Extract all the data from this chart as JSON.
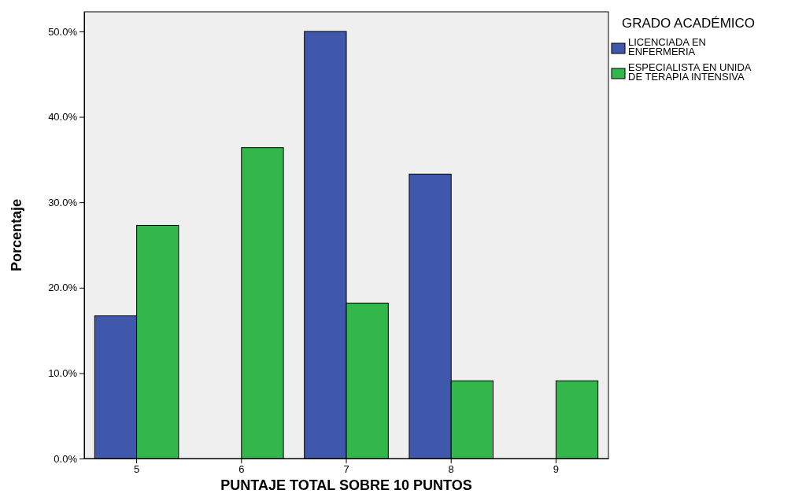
{
  "chart_data": {
    "type": "bar",
    "xlabel": "PUNTAJE TOTAL SOBRE 10 PUNTOS",
    "ylabel": "Porcentaje",
    "legend_title": "GRADO ACADÉMICO",
    "legend": "right",
    "categories": [
      "5",
      "6",
      "7",
      "8",
      "9"
    ],
    "series": [
      {
        "name": "LICENCIADA EN ENFERMERIA",
        "color": "#3f58ab",
        "values": [
          16.7,
          0,
          50,
          33.3,
          0
        ]
      },
      {
        "name": "ESPECIALISTA EN UNIDA DE TERAPIA INTENSIVA",
        "color": "#33b74a",
        "values": [
          27.3,
          36.4,
          18.2,
          9.1,
          9.1
        ]
      }
    ],
    "ylim": [
      0,
      52.3
    ],
    "yticks": [
      {
        "value": 0,
        "label": "0.0%"
      },
      {
        "value": 10,
        "label": "10.0%"
      },
      {
        "value": 20,
        "label": "20.0%"
      },
      {
        "value": 30,
        "label": "30.0%"
      },
      {
        "value": 40,
        "label": "40.0%"
      },
      {
        "value": 50,
        "label": "50.0%"
      }
    ]
  }
}
